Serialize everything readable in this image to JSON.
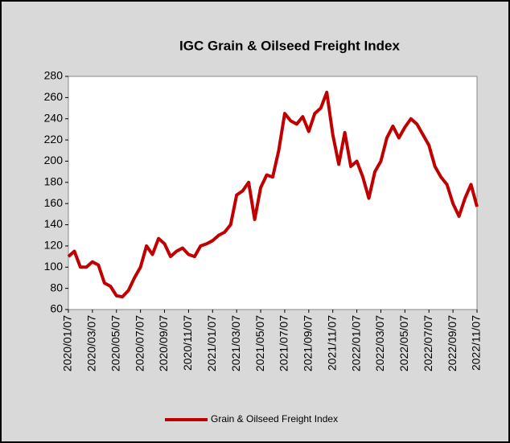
{
  "chart_data": {
    "type": "line",
    "title": "IGC Grain & Oilseed Freight Index",
    "categories": [
      "2020/01/07",
      null,
      null,
      null,
      "2020/03/07",
      null,
      null,
      null,
      "2020/05/07",
      null,
      null,
      null,
      "2020/07/07",
      null,
      null,
      null,
      "2020/09/07",
      null,
      null,
      null,
      "2020/11/07",
      null,
      null,
      null,
      "2021/01/07",
      null,
      null,
      null,
      "2021/03/07",
      null,
      null,
      null,
      "2021/05/07",
      null,
      null,
      null,
      "2021/07/07",
      null,
      null,
      null,
      "2021/09/07",
      null,
      null,
      null,
      "2021/11/07",
      null,
      null,
      null,
      "2022/01/07",
      null,
      null,
      null,
      "2022/03/07",
      null,
      null,
      null,
      "2022/05/07",
      null,
      null,
      null,
      "2022/07/07",
      null,
      null,
      null,
      "2022/09/07",
      null,
      null,
      null,
      "2022/11/07"
    ],
    "series": [
      {
        "name": "Grain & Oilseed Freight Index",
        "color": "#c00000",
        "values": [
          110,
          115,
          100,
          100,
          105,
          102,
          85,
          82,
          73,
          72,
          78,
          90,
          100,
          120,
          112,
          127,
          122,
          110,
          115,
          118,
          112,
          110,
          120,
          122,
          125,
          130,
          133,
          140,
          168,
          172,
          180,
          145,
          175,
          187,
          185,
          210,
          245,
          238,
          235,
          242,
          228,
          245,
          250,
          265,
          225,
          197,
          227,
          195,
          200,
          185,
          165,
          190,
          200,
          222,
          233,
          222,
          232,
          240,
          235,
          225,
          215,
          195,
          185,
          178,
          160,
          148,
          165,
          178,
          157
        ]
      }
    ],
    "ylim": [
      60,
      280
    ],
    "yticks": [
      60,
      80,
      100,
      120,
      140,
      160,
      180,
      200,
      220,
      240,
      260,
      280
    ],
    "legend": "bottom"
  }
}
